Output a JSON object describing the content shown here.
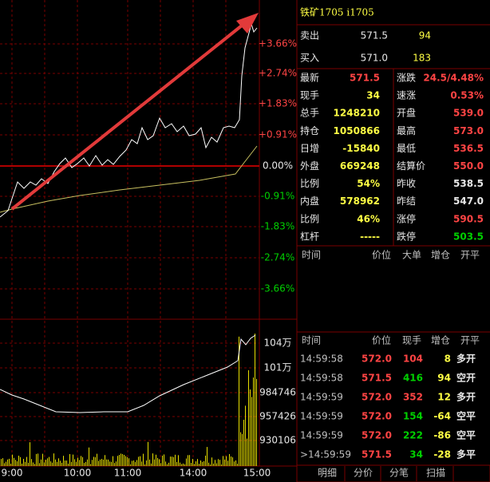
{
  "chart_panel": {
    "percent_labels": [
      "+3.66%",
      "+2.74%",
      "+1.83%",
      "+0.91%",
      "0.00%",
      "-0.91%",
      "-1.83%",
      "-2.74%",
      "-3.66%"
    ],
    "volume_labels": [
      "104万",
      "101万",
      "984746",
      "957426",
      "930106"
    ],
    "time_labels": [
      "9:00",
      "10:00",
      "11:00",
      "14:00",
      "15:00"
    ]
  },
  "quote_panel": {
    "title": "铁矿1705  i1705",
    "sell": {
      "label": "卖出",
      "price": "571.5",
      "qty": "94"
    },
    "buy": {
      "label": "买入",
      "price": "571.0",
      "qty": "183"
    },
    "stats": [
      [
        {
          "label": "最新",
          "value": "571.5"
        },
        {
          "label": "涨跌",
          "value": "24.5/4.48%"
        }
      ],
      [
        {
          "label": "现手",
          "value": "34"
        },
        {
          "label": "速涨",
          "value": "0.53%"
        }
      ],
      [
        {
          "label": "总手",
          "value": "1248210"
        },
        {
          "label": "开盘",
          "value": "539.0"
        }
      ],
      [
        {
          "label": "持仓",
          "value": "1050866"
        },
        {
          "label": "最高",
          "value": "573.0"
        }
      ],
      [
        {
          "label": "日增",
          "value": "-15840"
        },
        {
          "label": "最低",
          "value": "536.5"
        }
      ],
      [
        {
          "label": "外盘",
          "value": "669248"
        },
        {
          "label": "结算价",
          "value": "550.0"
        }
      ],
      [
        {
          "label": "比例",
          "value": "54%"
        },
        {
          "label": "昨收",
          "value": "538.5"
        }
      ],
      [
        {
          "label": "内盘",
          "value": "578962"
        },
        {
          "label": "昨结",
          "value": "547.0"
        }
      ],
      [
        {
          "label": "比例",
          "value": "46%"
        },
        {
          "label": "涨停",
          "value": "590.5"
        }
      ],
      [
        {
          "label": "杠杆",
          "value": "-----"
        },
        {
          "label": "跌停",
          "value": "503.5"
        }
      ]
    ],
    "big_orders_header": [
      "时间",
      "价位",
      "大单",
      "增仓",
      "开平"
    ],
    "trades_header": [
      "时间",
      "价位",
      "现手",
      "增仓",
      "开平"
    ],
    "trades": [
      [
        "14:59:58",
        "572.0",
        "104",
        "8",
        "多开"
      ],
      [
        "14:59:58",
        "571.5",
        "416",
        "94",
        "空开"
      ],
      [
        "14:59:59",
        "572.0",
        "352",
        "12",
        "多开"
      ],
      [
        "14:59:59",
        "572.0",
        "154",
        "-64",
        "空平"
      ],
      [
        "14:59:59",
        "572.0",
        "222",
        "-86",
        "空平"
      ],
      [
        ">14:59:59",
        "571.5",
        "34",
        "-28",
        "多平"
      ]
    ],
    "tabs": [
      "明细",
      "分价",
      "分笔",
      "扫描"
    ]
  }
}
